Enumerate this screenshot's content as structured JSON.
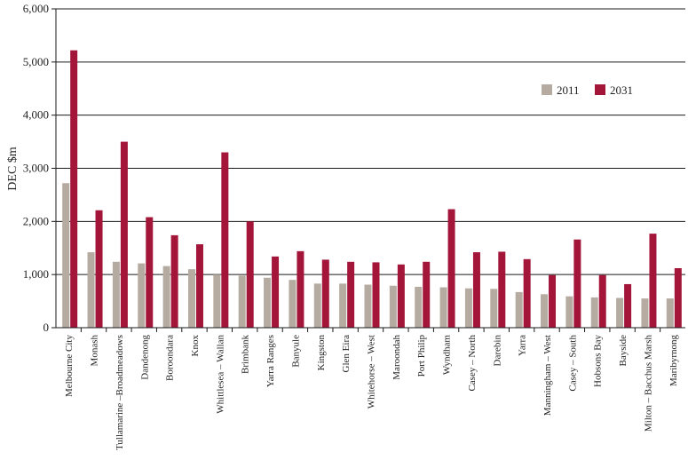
{
  "chart_data": {
    "type": "bar",
    "ylabel": "DEC $m",
    "xlabel": "",
    "ylim": [
      0,
      6000
    ],
    "yticks": [
      0,
      1000,
      2000,
      3000,
      4000,
      5000,
      6000
    ],
    "ytick_labels": [
      "0",
      "1,000",
      "2,000",
      "3,000",
      "4,000",
      "5,000",
      "6,000"
    ],
    "grid": true,
    "legend_position": "top-right",
    "categories": [
      "Melbourne City",
      "Monash",
      "Tullamarine –Broadmeadows",
      "Dandenong",
      "Boroondara",
      "Knox",
      "Whittlesea – Wallan",
      "Brimbank",
      "Yarra Ranges",
      "Banyule",
      "Kingston",
      "Glen Eira",
      "Whitehorse – West",
      "Maroondah",
      "Port Philip",
      "Wyndham",
      "Casey – North",
      "Darebin",
      "Yarra",
      "Manningham – West",
      "Casey – South",
      "Hobsons Bay",
      "Bayside",
      "Milton – Bacchus Marsh",
      "Maribyrnong"
    ],
    "series": [
      {
        "name": "2011",
        "color": "#b5aba1",
        "values": [
          2720,
          1420,
          1240,
          1210,
          1160,
          1100,
          1000,
          980,
          940,
          900,
          830,
          830,
          810,
          790,
          770,
          760,
          740,
          730,
          670,
          630,
          590,
          570,
          560,
          550,
          550
        ]
      },
      {
        "name": "2031",
        "color": "#a3163a",
        "values": [
          5220,
          2210,
          3500,
          2080,
          1740,
          1570,
          3300,
          2000,
          1340,
          1440,
          1280,
          1240,
          1230,
          1190,
          1240,
          2230,
          1420,
          1430,
          1290,
          990,
          1660,
          990,
          820,
          1770,
          1120
        ]
      }
    ]
  }
}
